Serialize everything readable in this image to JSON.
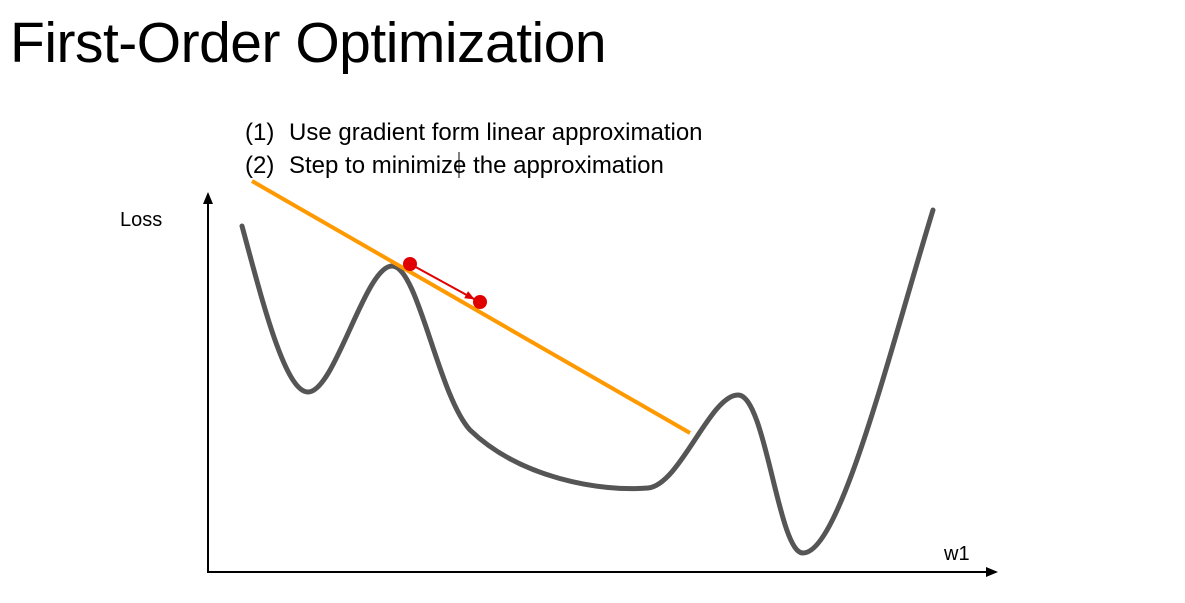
{
  "title": "First-Order Optimization",
  "steps": [
    {
      "number": "(1)",
      "text": "Use gradient form linear approximation"
    },
    {
      "number": "(2)",
      "text": "Step to minimize the approximation"
    }
  ],
  "diagram": {
    "y_axis_label": "Loss",
    "x_axis_label": "w1",
    "colors": {
      "loss_curve": "#555555",
      "tangent_line": "#ff9900",
      "points": "#e00000",
      "axes": "#000000"
    }
  }
}
